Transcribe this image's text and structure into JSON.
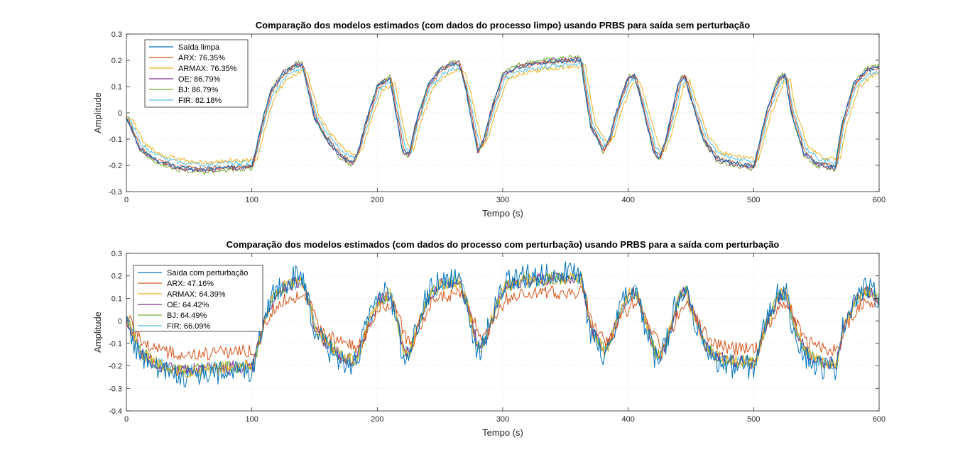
{
  "chart_data": [
    {
      "type": "line",
      "title": "Comparação dos modelos estimados (com dados do processo limpo) usando PRBS para saída sem perturbação",
      "xlabel": "Tempo (s)",
      "ylabel": "Amplitude",
      "xlim": [
        0,
        600
      ],
      "ylim": [
        -0.3,
        0.3
      ],
      "xticks": [
        "0",
        "100",
        "200",
        "300",
        "400",
        "500",
        "600"
      ],
      "yticks": [
        "-0.3",
        "-0.2",
        "-0.1",
        "0",
        "0.1",
        "0.2",
        "0.3"
      ],
      "grid": true,
      "legend_position": "top-left",
      "noise": 0.008,
      "series": [
        {
          "name": "Saída limpa",
          "color": "#0072BD",
          "lag": 0,
          "gain": 1.0,
          "x_end": 600,
          "x": [
            0,
            5,
            10,
            20,
            30,
            40,
            50,
            60,
            70,
            80,
            90,
            100,
            105,
            110,
            115,
            125,
            135,
            140,
            145,
            150,
            160,
            170,
            180,
            185,
            190,
            200,
            210,
            220,
            225,
            230,
            240,
            250,
            260,
            265,
            270,
            280,
            285,
            290,
            300,
            310,
            320,
            340,
            360,
            362,
            365,
            370,
            380,
            385,
            390,
            400,
            405,
            410,
            420,
            425,
            430,
            440,
            445,
            450,
            460,
            470,
            480,
            490,
            500,
            505,
            510,
            520,
            525,
            530,
            540,
            550,
            560,
            565,
            570,
            580,
            590,
            600
          ],
          "y": [
            -0.02,
            -0.07,
            -0.13,
            -0.17,
            -0.19,
            -0.205,
            -0.21,
            -0.215,
            -0.21,
            -0.205,
            -0.205,
            -0.2,
            -0.1,
            0.0,
            0.08,
            0.15,
            0.18,
            0.18,
            0.08,
            -0.02,
            -0.1,
            -0.16,
            -0.19,
            -0.14,
            -0.05,
            0.1,
            0.13,
            -0.14,
            -0.16,
            -0.05,
            0.1,
            0.16,
            0.185,
            0.185,
            0.1,
            -0.145,
            -0.1,
            0.0,
            0.14,
            0.17,
            0.18,
            0.195,
            0.2,
            0.2,
            0.1,
            -0.05,
            -0.14,
            -0.1,
            0.0,
            0.13,
            0.14,
            0.05,
            -0.14,
            -0.17,
            -0.1,
            0.11,
            0.14,
            0.05,
            -0.1,
            -0.17,
            -0.185,
            -0.195,
            -0.205,
            -0.1,
            0.0,
            0.13,
            0.14,
            0.0,
            -0.15,
            -0.19,
            -0.2,
            -0.205,
            -0.05,
            0.11,
            0.16,
            0.17
          ]
        },
        {
          "name": "ARX: 76.35%",
          "color": "#D95319",
          "lag": 1,
          "gain": 1.0,
          "x_end": 600
        },
        {
          "name": "ARMAX: 76.35%",
          "color": "#EDB120",
          "lag": 4,
          "gain": 0.88,
          "x_end": 600
        },
        {
          "name": "OE: 86.79%",
          "color": "#7E2F8E",
          "lag": 0,
          "gain": 1.03,
          "x_end": 600
        },
        {
          "name": "BJ: 86.79%",
          "color": "#77AC30",
          "lag": 0,
          "gain": 1.06,
          "x_end": 600
        },
        {
          "name": "FIR: 82.18%",
          "color": "#4DBEEE",
          "lag": 2,
          "gain": 0.92,
          "x_end": 600
        }
      ]
    },
    {
      "type": "line",
      "title": "Comparação dos modelos estimados (com dados do processo com perturbação) usando PRBS para a saída com perturbação",
      "xlabel": "Tempo (s)",
      "ylabel": "Amplitude",
      "xlim": [
        0,
        600
      ],
      "ylim": [
        -0.4,
        0.3
      ],
      "xticks": [
        "0",
        "100",
        "200",
        "300",
        "400",
        "500",
        "600"
      ],
      "yticks": [
        "-0.4",
        "-0.3",
        "-0.2",
        "-0.1",
        "0",
        "0.1",
        "0.2",
        "0.3"
      ],
      "grid": true,
      "legend_position": "top-left",
      "noise": 0.03,
      "series": [
        {
          "name": "Saída com perturbação",
          "color": "#0072BD",
          "lag": 0,
          "gain": 1.0,
          "noise": 0.055,
          "x_end": 600,
          "x": [
            0,
            5,
            10,
            20,
            30,
            40,
            50,
            60,
            70,
            80,
            90,
            100,
            105,
            110,
            115,
            125,
            135,
            140,
            145,
            150,
            160,
            170,
            180,
            185,
            190,
            200,
            210,
            220,
            225,
            230,
            240,
            250,
            260,
            265,
            270,
            280,
            285,
            290,
            300,
            310,
            320,
            340,
            360,
            362,
            365,
            370,
            380,
            385,
            390,
            400,
            405,
            410,
            420,
            425,
            430,
            440,
            445,
            450,
            460,
            470,
            480,
            490,
            500,
            505,
            510,
            520,
            525,
            530,
            540,
            550,
            560,
            565,
            570,
            580,
            590,
            600
          ],
          "y": [
            0.0,
            -0.08,
            -0.15,
            -0.2,
            -0.23,
            -0.24,
            -0.245,
            -0.24,
            -0.235,
            -0.23,
            -0.225,
            -0.22,
            -0.1,
            0.02,
            0.1,
            0.17,
            0.19,
            0.19,
            0.08,
            -0.05,
            -0.12,
            -0.17,
            -0.2,
            -0.15,
            -0.05,
            0.1,
            0.13,
            -0.14,
            -0.16,
            -0.05,
            0.12,
            0.18,
            0.19,
            0.19,
            0.1,
            -0.15,
            -0.1,
            0.0,
            0.16,
            0.19,
            0.2,
            0.21,
            0.21,
            0.21,
            0.1,
            -0.05,
            -0.15,
            -0.1,
            0.0,
            0.13,
            0.15,
            0.05,
            -0.15,
            -0.17,
            -0.1,
            0.12,
            0.15,
            0.05,
            -0.12,
            -0.18,
            -0.2,
            -0.2,
            -0.21,
            -0.1,
            0.0,
            0.13,
            0.14,
            0.0,
            -0.15,
            -0.2,
            -0.21,
            -0.21,
            -0.05,
            0.1,
            0.15,
            0.1
          ]
        },
        {
          "name": "ARX: 47.16%",
          "color": "#D95319",
          "lag": 3,
          "gain": 0.6,
          "x_end": 600
        },
        {
          "name": "ARMAX: 64.39%",
          "color": "#EDB120",
          "lag": 1,
          "gain": 0.9,
          "x_end": 600
        },
        {
          "name": "OE: 64.42%",
          "color": "#7E2F8E",
          "lag": 1,
          "gain": 0.9,
          "x_end": 600
        },
        {
          "name": "BJ: 64.49%",
          "color": "#77AC30",
          "lag": 1,
          "gain": 0.9,
          "x_end": 600
        },
        {
          "name": "FIR: 66.09%",
          "color": "#4DBEEE",
          "lag": 1,
          "gain": 0.9,
          "x_end": 600
        }
      ]
    }
  ]
}
